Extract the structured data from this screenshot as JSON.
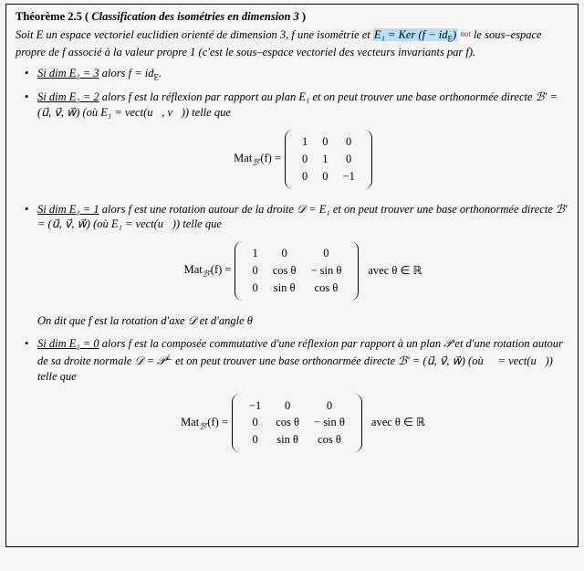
{
  "heading_prefix": "Théorème 2.5",
  "heading_title": "Classification des isométries en dimension 3",
  "intro_a": "Soit E un espace vectoriel euclidien orienté de dimension 3, f une isométrie et ",
  "hl_text": "E₁ = Ker (f − id",
  "hl_sub": "E",
  "hl_close": ")",
  "annot": "not",
  "intro_b": " le sous–espace propre de f associé à la valeur propre 1 (c'est le sous–espace vectoriel des vecteurs invariants par f).",
  "c1_cond": "Si dim E₁ = 3",
  "c1_rest": " alors f = id",
  "c1_subE": "E",
  "c1_dot": ".",
  "c2_cond": "Si dim E₁ = 2",
  "c2_rest_a": " alors f est la réflexion par rapport au plan E₁ et on peut trouver une base ortho­normée directe ",
  "c2_basis": "ℬ′ = (u⃗, v⃗, w⃗)",
  "c2_rest_b": " (où E₁ = vect(u⃗, v⃗)) telle que",
  "eq_label_a": "Mat",
  "eq_label_b": "ℬ′",
  "eq_label_c": "(f) = ",
  "m1": [
    [
      "1",
      "0",
      "0"
    ],
    [
      "0",
      "1",
      "0"
    ],
    [
      "0",
      "0",
      "−1"
    ]
  ],
  "c3_cond": "Si dim E₁ = 1",
  "c3_rest_a": " alors f est une rotation autour de la droite 𝒟 = E₁ et on peut trouver une base orthonormée directe ",
  "c3_basis": "ℬ′ = (u⃗, v⃗, w⃗)",
  "c3_rest_b": " (où E₁ = vect(u⃗)) telle que",
  "m2": [
    [
      "1",
      "0",
      "0"
    ],
    [
      "0",
      "cos θ",
      "− sin θ"
    ],
    [
      "0",
      "sin θ",
      "cos θ"
    ]
  ],
  "avec": " avec θ ∈ ℝ",
  "c3_say": "On dit que f est la rotation d'axe 𝒟 et d'angle θ",
  "c4_cond": "Si dim E₁ = 0",
  "c4_rest_a": " alors f est la composée commutative d'une réflexion par rapport à un plan 𝒫 et d'une rotation autour de sa droite normale 𝒟 = 𝒫",
  "c4_perp": "⊥",
  "c4_rest_b": " et on peut trouver une base orthonormée directe ",
  "c4_basis": "ℬ′ = (u⃗, v⃗, w⃗)",
  "c4_rest_c": " (où 𝒟 = vect(u⃗)) telle que",
  "m3": [
    [
      "−1",
      "0",
      "0"
    ],
    [
      "0",
      "cos θ",
      "− sin θ"
    ],
    [
      "0",
      "sin θ",
      "cos θ"
    ]
  ]
}
